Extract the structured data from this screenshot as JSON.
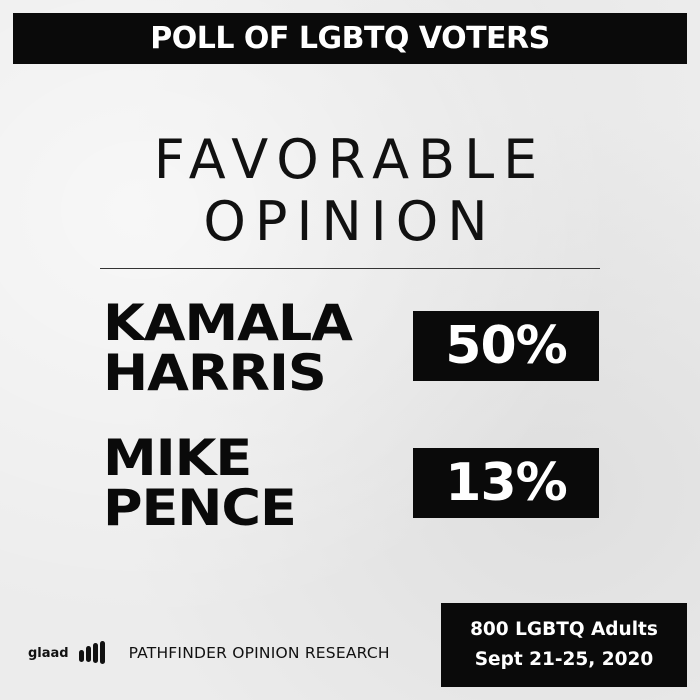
{
  "banner": {
    "text": "POLL OF LGBTQ VOTERS"
  },
  "heading": {
    "line1": "FAVORABLE",
    "line2": "OPINION"
  },
  "candidates": [
    {
      "name_line1": "KAMALA",
      "name_line2": "HARRIS",
      "percent": "50%"
    },
    {
      "name_line1": "MIKE",
      "name_line2": "PENCE",
      "percent": "13%"
    }
  ],
  "footer": {
    "logo_text": "glaad",
    "research_firm": "PATHFINDER OPINION RESEARCH",
    "sample": "800 LGBTQ Adults",
    "dates": "Sept 21-25, 2020"
  },
  "colors": {
    "background": "#ececec",
    "black": "#0a0a0a",
    "white": "#ffffff"
  }
}
